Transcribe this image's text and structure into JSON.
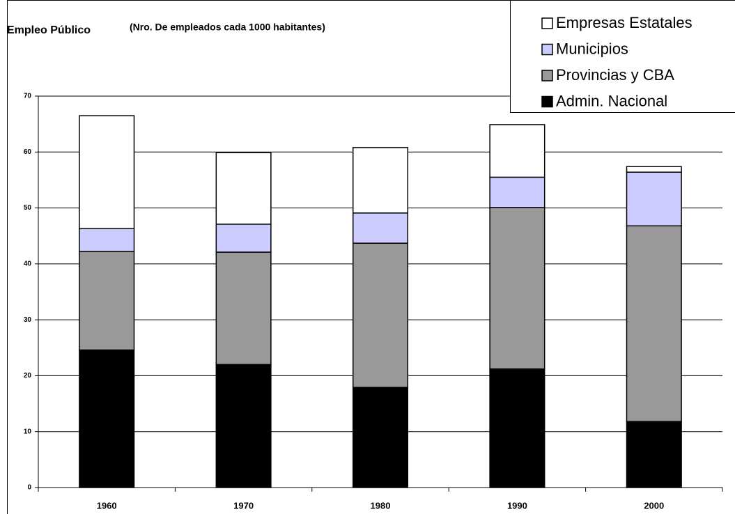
{
  "chart_data": {
    "type": "stacked_bar",
    "title": "Empleo Público",
    "subtitle": "(Nro. De empleados cada 1000 habitantes)",
    "categories": [
      "1960",
      "1970",
      "1980",
      "1990",
      "2000"
    ],
    "series": [
      {
        "name": "Admin. Nacional",
        "color": "#000000",
        "values": [
          24.6,
          22.0,
          17.9,
          21.2,
          11.8
        ]
      },
      {
        "name": "Provincias y CBA",
        "color": "#999999",
        "values": [
          17.6,
          20.1,
          25.8,
          28.9,
          35.0
        ]
      },
      {
        "name": "Municipios",
        "color": "#ccccff",
        "values": [
          4.1,
          5.0,
          5.4,
          5.4,
          9.6
        ]
      },
      {
        "name": "Empresas Estatales",
        "color": "#ffffff",
        "values": [
          20.2,
          12.8,
          11.7,
          9.4,
          1.0
        ]
      }
    ],
    "ylim": [
      0,
      70
    ],
    "yticks": [
      0,
      10,
      20,
      30,
      40,
      50,
      60,
      70
    ],
    "grid": true,
    "legend": "top-right"
  }
}
